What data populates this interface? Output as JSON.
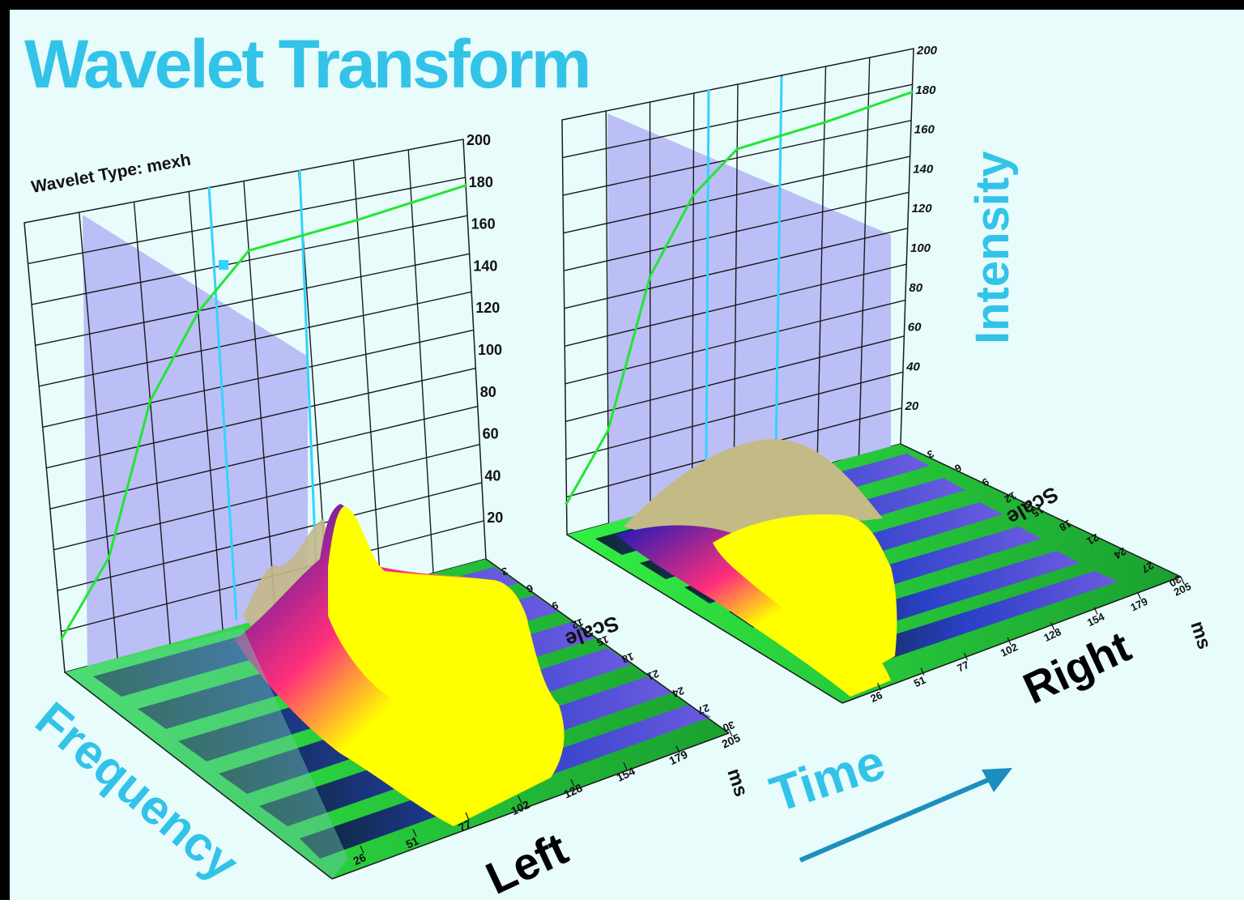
{
  "title": "Wavelet Transform",
  "wavelet_type_label": "Wavelet Type: mexh",
  "labels": {
    "frequency": "Frequency",
    "time": "Time",
    "intensity": "Intensity",
    "left": "Left",
    "right": "Right",
    "scale": "Scale",
    "ms": "ms"
  },
  "colors": {
    "background": "#e8fcfc",
    "title": "#33c3e8",
    "grid": "#1a1a1a",
    "curve": "#22e633",
    "cursor": "#35d2ff",
    "panel": "#b6b8f5",
    "surface_peak": "#ffff00",
    "surface_mid": "#ff2e7a",
    "surface_low": "#1010c8",
    "floor": "#33ee44",
    "arrow": "#1c8fbf"
  },
  "chart_data": [
    {
      "type": "line",
      "name": "Left",
      "xlabel": "ms",
      "zlabel": "Scale",
      "ylim": [
        0,
        200
      ],
      "intensity_ticks": [
        "20",
        "40",
        "60",
        "80",
        "100",
        "120",
        "140",
        "160",
        "180",
        "200"
      ],
      "time_ticks": [
        "26",
        "51",
        "77",
        "102",
        "128",
        "154",
        "179",
        "205"
      ],
      "scale_ticks": [
        "3",
        "6",
        "9",
        "12",
        "15",
        "18",
        "21",
        "24",
        "27",
        "30"
      ],
      "cursor_markers": [
        1,
        2
      ],
      "curve": {
        "x": [
          0,
          1,
          2,
          3,
          4,
          5,
          6,
          7,
          8
        ],
        "y": [
          15,
          45,
          110,
          145,
          168,
          170,
          172,
          175,
          178
        ]
      }
    },
    {
      "type": "line",
      "name": "Right",
      "xlabel": "ms",
      "zlabel": "Scale",
      "ylim": [
        0,
        200
      ],
      "intensity_ticks": [
        "20",
        "40",
        "60",
        "80",
        "100",
        "120",
        "140",
        "160",
        "180",
        "200"
      ],
      "time_ticks": [
        "26",
        "51",
        "77",
        "102",
        "128",
        "154",
        "179",
        "205"
      ],
      "scale_ticks": [
        "3",
        "6",
        "9",
        "12",
        "15",
        "18",
        "21",
        "24",
        "27",
        "30"
      ],
      "curve": {
        "x": [
          0,
          1,
          2,
          3,
          4,
          5,
          6,
          7,
          8
        ],
        "y": [
          15,
          45,
          115,
          150,
          168,
          170,
          172,
          175,
          178
        ]
      }
    }
  ]
}
